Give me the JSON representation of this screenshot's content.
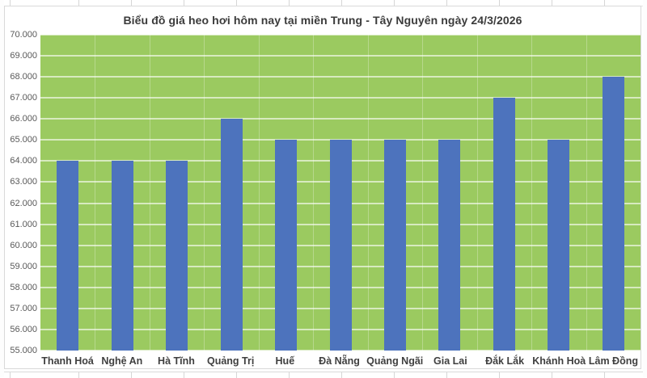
{
  "chart_data": {
    "type": "bar",
    "title": "Biểu đồ giá heo hơi hôm nay tại miền Trung - Tây Nguyên ngày 24/3/2026",
    "categories": [
      "Thanh Hoá",
      "Nghệ An",
      "Hà Tĩnh",
      "Quảng Trị",
      "Huế",
      "Đà Nẵng",
      "Quảng Ngãi",
      "Gia Lai",
      "Đắk Lắk",
      "Khánh Hoà",
      "Lâm Đồng"
    ],
    "values": [
      64000,
      64000,
      64000,
      66000,
      65000,
      65000,
      65000,
      65000,
      67000,
      65000,
      68000
    ],
    "xlabel": "",
    "ylabel": "",
    "ylim": [
      55000,
      70000
    ],
    "ytick_step": 1000,
    "ytick_labels": [
      "70.000",
      "69.000",
      "68.000",
      "67.000",
      "66.000",
      "65.000",
      "64.000",
      "63.000",
      "62.000",
      "61.000",
      "60.000",
      "59.000",
      "58.000",
      "57.000",
      "56.000",
      "55.000"
    ],
    "grid": "horizontal",
    "legend": "none",
    "colors": {
      "bar": "#4d73bd",
      "plot_background": "#9bca60",
      "gridline": "rgba(255,255,255,0.60)",
      "title_text": "#3b3b3b",
      "axis_text": "#595959",
      "category_text": "#3f3f3f",
      "chart_border": "#d9d9d9"
    }
  }
}
